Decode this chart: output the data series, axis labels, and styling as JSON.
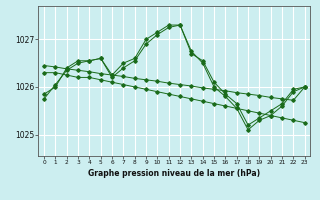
{
  "title": "Graphe pression niveau de la mer (hPa)",
  "bg_color": "#cceef0",
  "grid_color": "#ffffff",
  "line_color": "#1a6b1a",
  "marker_color": "#1a6b1a",
  "xlim": [
    -0.5,
    23.5
  ],
  "ylim": [
    1024.55,
    1027.7
  ],
  "yticks": [
    1025,
    1026,
    1027
  ],
  "xticks": [
    0,
    1,
    2,
    3,
    4,
    5,
    6,
    7,
    8,
    9,
    10,
    11,
    12,
    13,
    14,
    15,
    16,
    17,
    18,
    19,
    20,
    21,
    22,
    23
  ],
  "series": [
    {
      "x": [
        0,
        1,
        2,
        3,
        4,
        5,
        6,
        7,
        8,
        9,
        10,
        11,
        12,
        13,
        14,
        15,
        16,
        17,
        18,
        19,
        20,
        21,
        22,
        23
      ],
      "y": [
        1026.3,
        1026.3,
        1026.25,
        1026.2,
        1026.2,
        1026.15,
        1026.1,
        1026.05,
        1026.0,
        1025.95,
        1025.9,
        1025.85,
        1025.8,
        1025.75,
        1025.7,
        1025.65,
        1025.6,
        1025.55,
        1025.5,
        1025.45,
        1025.4,
        1025.35,
        1025.3,
        1025.25
      ]
    },
    {
      "x": [
        0,
        1,
        2,
        3,
        4,
        5,
        6,
        7,
        8,
        9,
        10,
        11,
        12,
        13,
        14,
        15,
        16,
        17,
        18,
        19,
        20,
        21,
        22,
        23
      ],
      "y": [
        1026.45,
        1026.42,
        1026.38,
        1026.35,
        1026.32,
        1026.28,
        1026.25,
        1026.22,
        1026.18,
        1026.15,
        1026.12,
        1026.08,
        1026.05,
        1026.02,
        1025.98,
        1025.95,
        1025.92,
        1025.88,
        1025.85,
        1025.82,
        1025.78,
        1025.75,
        1025.72,
        1026.0
      ]
    },
    {
      "x": [
        0,
        1,
        2,
        3,
        4,
        5,
        6,
        7,
        8,
        9,
        10,
        11,
        12,
        13,
        14,
        15,
        16,
        17,
        18,
        19,
        20,
        21,
        22,
        23
      ],
      "y": [
        1025.85,
        1026.0,
        1026.4,
        1026.55,
        1026.55,
        1026.6,
        1026.25,
        1026.5,
        1026.6,
        1027.0,
        1027.15,
        1027.3,
        1027.3,
        1026.7,
        1026.55,
        1026.1,
        1025.85,
        1025.65,
        1025.2,
        1025.35,
        1025.5,
        1025.65,
        1025.95,
        1026.0
      ]
    },
    {
      "x": [
        0,
        1,
        2,
        3,
        4,
        5,
        6,
        7,
        8,
        9,
        10,
        11,
        12,
        13,
        14,
        15,
        16,
        17,
        18,
        19,
        20,
        21,
        22,
        23
      ],
      "y": [
        1025.75,
        1026.05,
        1026.35,
        1026.5,
        1026.55,
        1026.6,
        1026.2,
        1026.4,
        1026.55,
        1026.9,
        1027.1,
        1027.25,
        1027.3,
        1026.75,
        1026.5,
        1026.0,
        1025.8,
        1025.55,
        1025.1,
        1025.3,
        1025.4,
        1025.6,
        1025.9,
        1026.0
      ]
    }
  ]
}
